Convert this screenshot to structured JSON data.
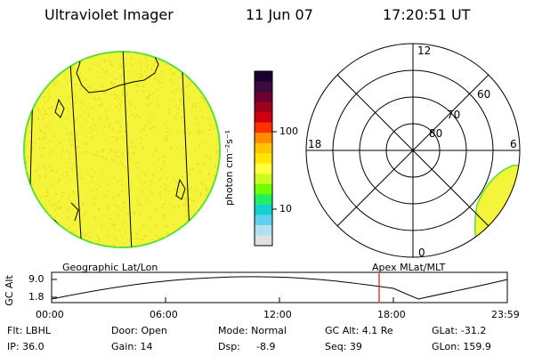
{
  "header": {
    "instrument": "Ultraviolet Imager",
    "date": "11 Jun 07",
    "time": "17:20:51 UT"
  },
  "colorbar": {
    "unit": "photon cm⁻²s⁻¹",
    "tick_high": "100",
    "tick_low": "10",
    "colors": [
      "#1a0030",
      "#3a0a40",
      "#6a0030",
      "#a00018",
      "#d00010",
      "#ff3000",
      "#ff8c00",
      "#ffc400",
      "#ffe600",
      "#ffff40",
      "#c8ff20",
      "#70ff00",
      "#20f060",
      "#10d0d0",
      "#60d0f0",
      "#b0e0f0",
      "#e0e0e0"
    ]
  },
  "globe": {
    "fill_color": "#f4f43a",
    "speckle_color": "#f2e020",
    "edge_color": "#59e03a"
  },
  "polar_plot": {
    "lat_labels": [
      "80",
      "70",
      "60"
    ],
    "mlt_labels": {
      "top": "12",
      "bottom": "0",
      "left": "18",
      "right": "6"
    },
    "fill_color": "#f4f43a"
  },
  "altitude_plot": {
    "ylabel": "GC Alt",
    "yticks": [
      "9.0",
      "1.8"
    ],
    "left_title": "Geographic Lat/Lon",
    "right_title": "Apex  MLat/MLT",
    "xticks": [
      "00:00",
      "06:00",
      "12:00",
      "18:00",
      "23:59"
    ],
    "marker_time": "17:20:51",
    "marker_color": "#e01010"
  },
  "info": {
    "flt": "Flt: LBHL",
    "ip": "IP: 36.0",
    "door": "Door: Open",
    "gain": "Gain: 14",
    "mode": "Mode: Normal",
    "dsp_label": "Dsp:",
    "dsp_value": "-8.9",
    "gc_alt": "GC Alt: 4.1 Re",
    "seq": "Seq: 39",
    "glat": "GLat: -31.2",
    "glon": "GLon: 159.9"
  }
}
